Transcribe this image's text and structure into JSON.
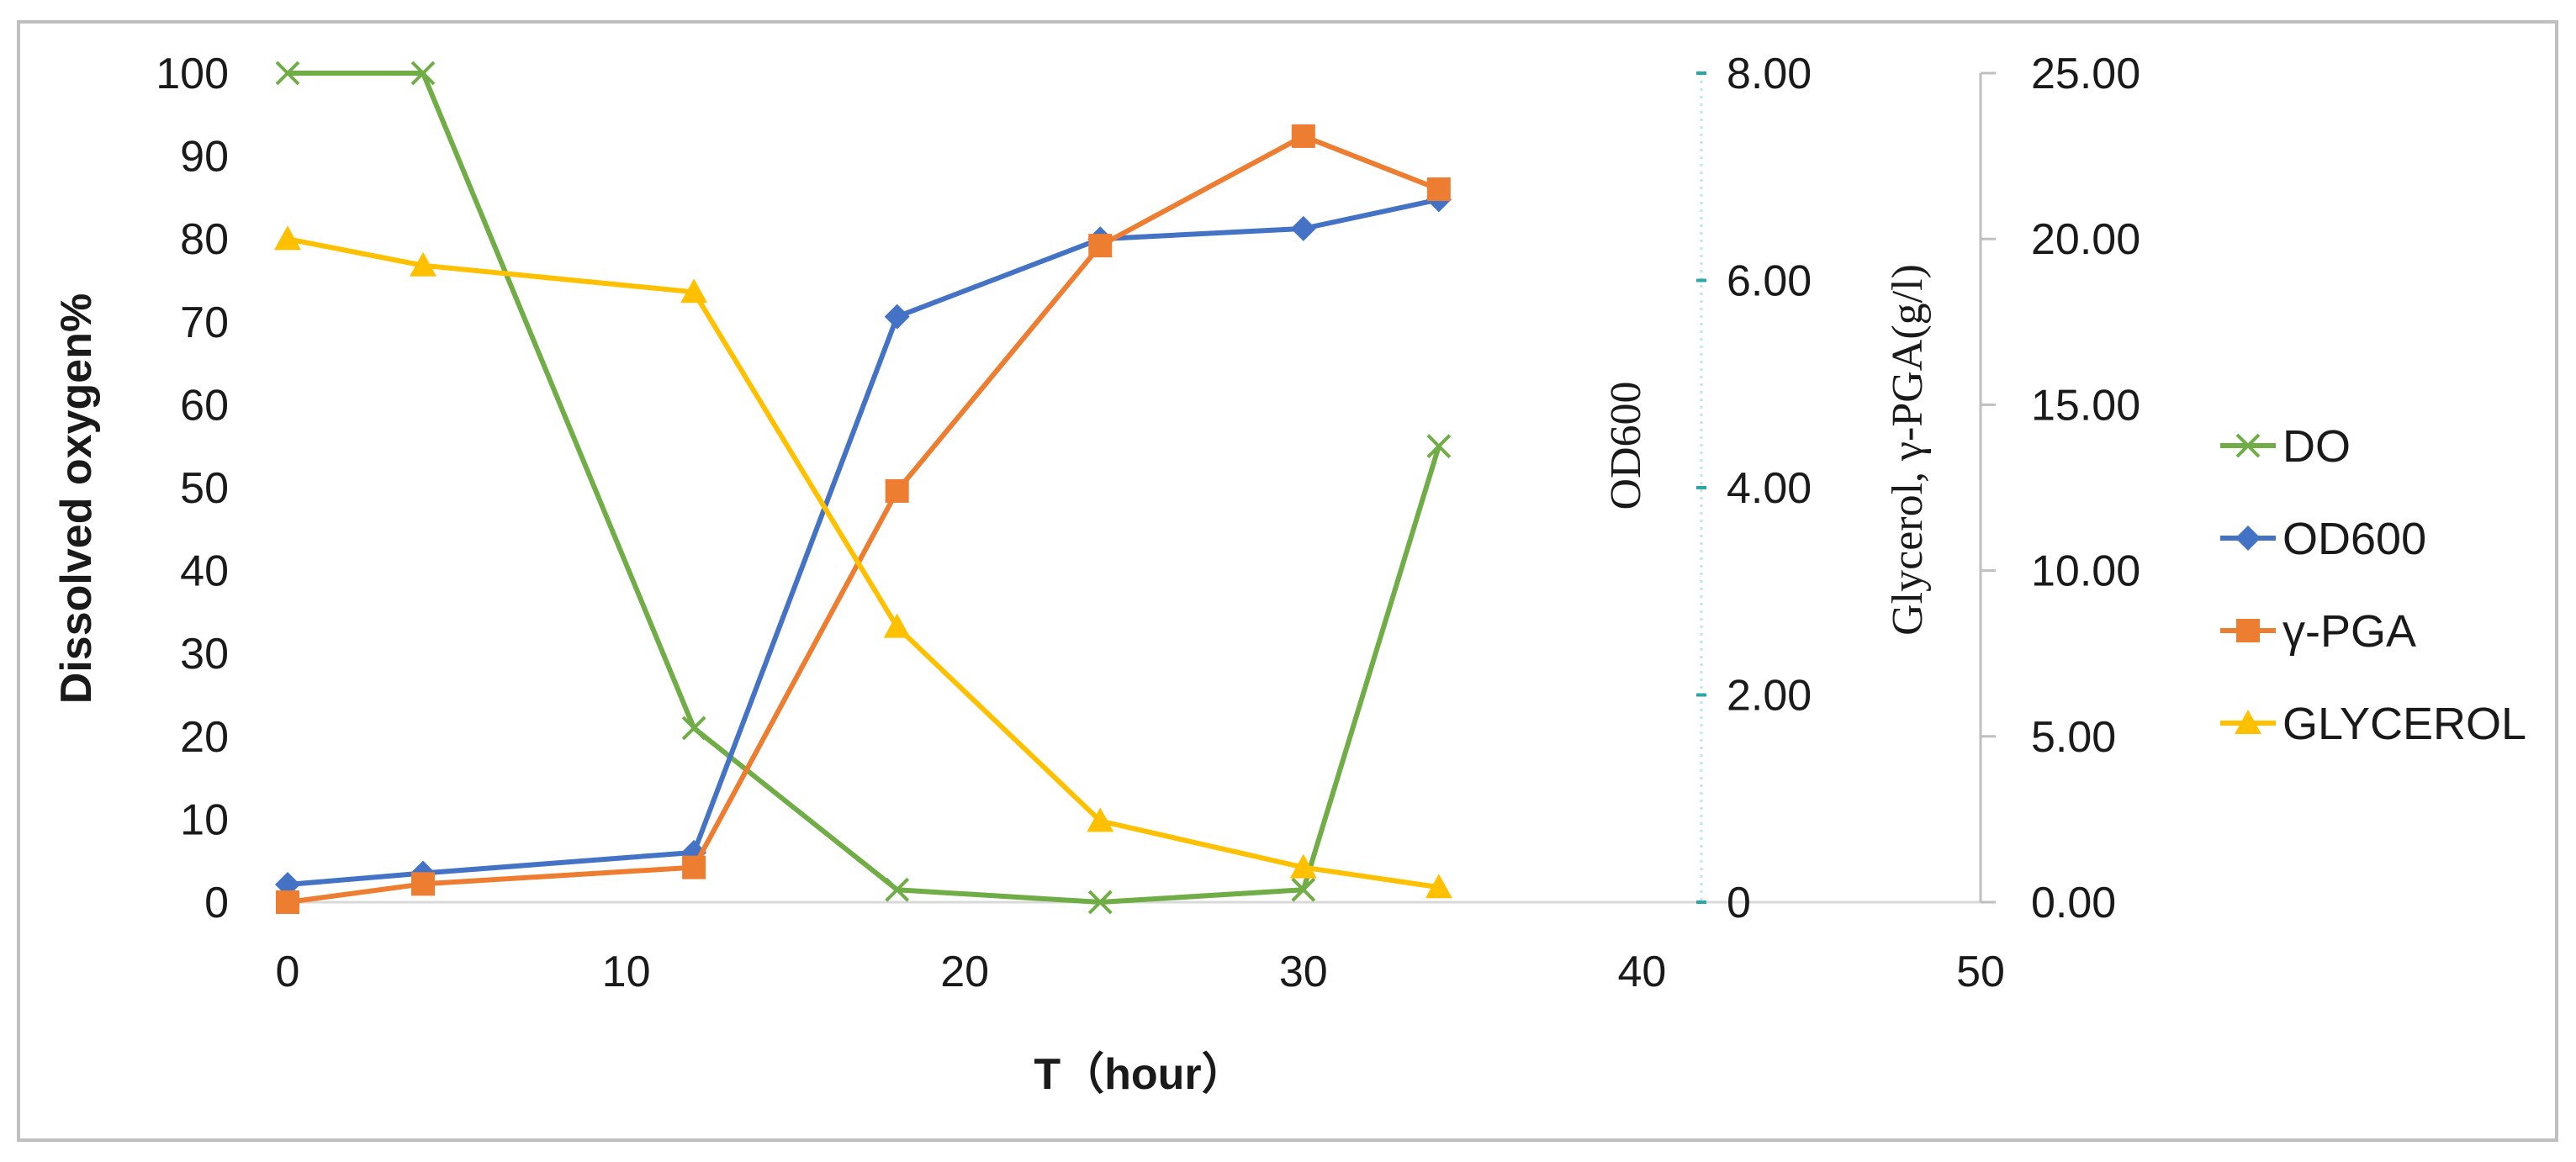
{
  "chart_data": {
    "type": "line",
    "xlabel": "T（hour）",
    "ylabel_left": "Dissolved oxygen%",
    "ylabel_mid": "OD600",
    "ylabel_right": "Glycerol, γ-PGA(g/l)",
    "xlim": [
      0,
      50
    ],
    "ylim_left": [
      0,
      100
    ],
    "ylim_mid": [
      0,
      8
    ],
    "ylim_right": [
      0,
      25
    ],
    "x_ticks": [
      "0",
      "10",
      "20",
      "30",
      "40",
      "50"
    ],
    "left_ticks": [
      "0",
      "10",
      "20",
      "30",
      "40",
      "50",
      "60",
      "70",
      "80",
      "90",
      "100"
    ],
    "mid_ticks": [
      "0",
      "2.00",
      "4.00",
      "6.00",
      "8.00"
    ],
    "right_ticks": [
      "0.00",
      "5.00",
      "10.00",
      "15.00",
      "20.00",
      "25.00"
    ],
    "series": [
      {
        "name": "DO",
        "axis": "left",
        "color": "#70ad47",
        "marker": "x",
        "x": [
          0,
          4,
          12,
          18,
          24,
          30,
          34
        ],
        "values": [
          100,
          100,
          21,
          1.5,
          0,
          1.5,
          55
        ]
      },
      {
        "name": "OD600",
        "axis": "mid",
        "color": "#4472c4",
        "marker": "diamond",
        "x": [
          0,
          4,
          12,
          18,
          24,
          30,
          34
        ],
        "values": [
          0.17,
          0.28,
          0.48,
          5.65,
          6.4,
          6.5,
          6.78
        ]
      },
      {
        "name": "γ-PGA",
        "axis": "right",
        "color": "#ed7d31",
        "marker": "square",
        "x": [
          0,
          4,
          12,
          18,
          24,
          30,
          34
        ],
        "values": [
          0.0,
          0.55,
          1.05,
          12.4,
          19.8,
          23.1,
          21.5
        ]
      },
      {
        "name": "GLYCEROL",
        "axis": "right",
        "color": "#ffc000",
        "marker": "triangle",
        "x": [
          0,
          4,
          12,
          18,
          24,
          30,
          34
        ],
        "values": [
          20.0,
          19.2,
          18.4,
          8.3,
          2.45,
          1.05,
          0.45
        ]
      }
    ],
    "legend_position": "right"
  }
}
